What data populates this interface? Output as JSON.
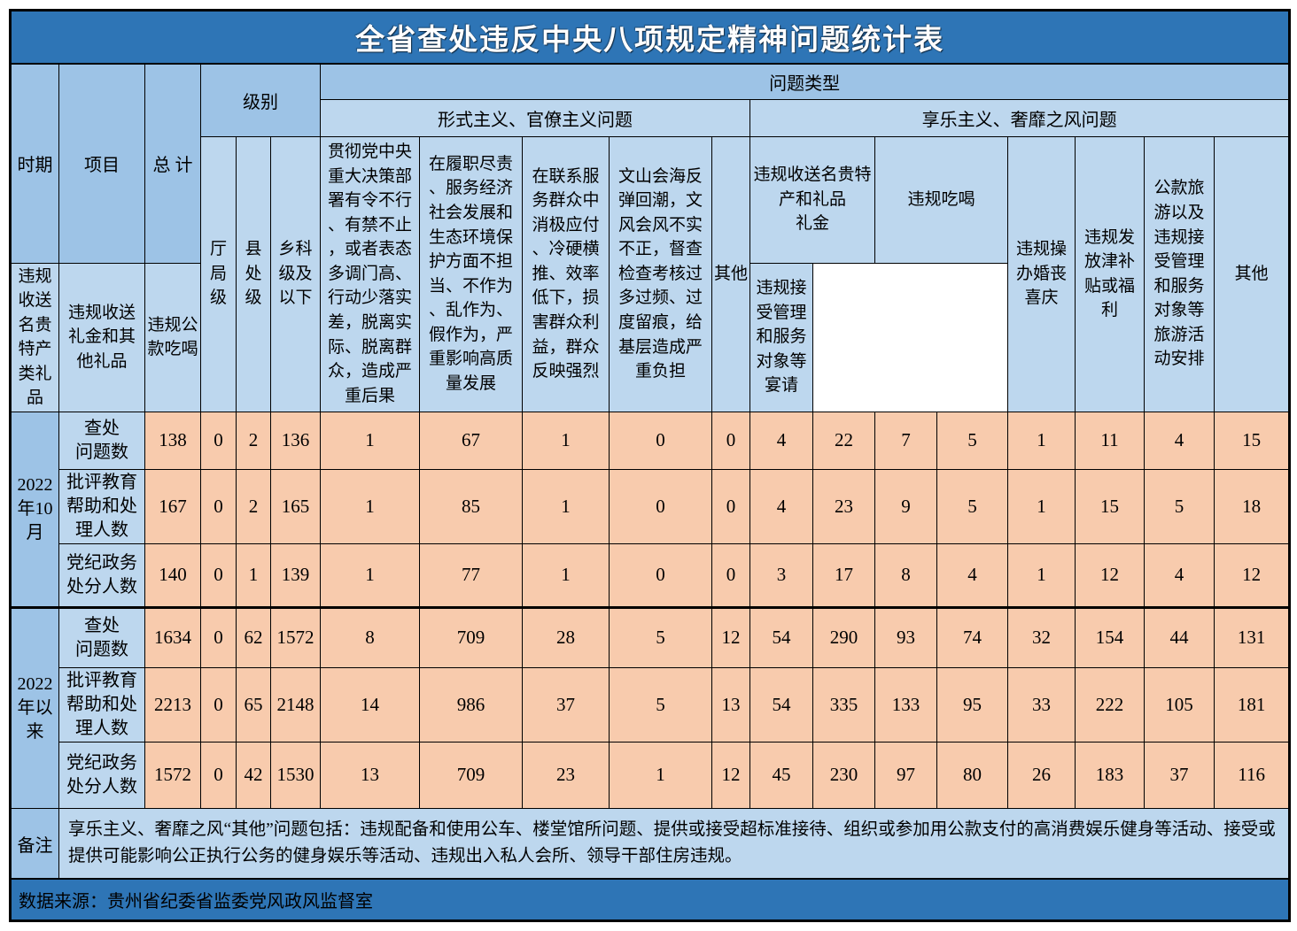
{
  "title": "全省查处违反中央八项规定精神问题统计表",
  "colors": {
    "title_bar": "#2E75B6",
    "header_medium_blue": "#9DC3E6",
    "header_light_blue": "#BDD7EE",
    "data_cell_peach": "#F8CBAD",
    "source_bar": "#2E75B6",
    "border": "#000000"
  },
  "header": {
    "period_col": "时期",
    "item_col": "项目",
    "total_col": "总 计",
    "level_group": "级别",
    "problem_type_group": "问题类型",
    "formalism_group": "形式主义、官僚主义问题",
    "hedonism_group": "享乐主义、奢靡之风问题",
    "level_cols": [
      "厅\n局\n级",
      "县\n处\n级",
      "乡科\n级及\n以下"
    ],
    "formalism_cols": [
      "贯彻党中央重大决策部署有令不行、有禁不止，或者表态多调门高、行动少落实差，脱离实际、脱离群众，造成严重后果",
      "在履职尽责、服务经济社会发展和生态环境保护方面不担当、不作为、乱作为、假作为，严重影响高质量发展",
      "在联系服务群众中消极应付、冷硬横推、效率低下，损害群众利益，群众反映强烈",
      "文山会海反弹回潮，文风会风不实不正，督查检查考核过多过频、过度留痕，给基层造成严重负担",
      "其他"
    ],
    "gift_group": "违规收送名贵特产和礼品\n礼金",
    "gift_cols": [
      "违规收送名贵特产类礼品",
      "违规收送礼金和其他礼品"
    ],
    "dining_group": "违规吃喝",
    "dining_cols": [
      "违规公款吃喝",
      "违规接受管理和服务对象等宴请"
    ],
    "hedonism_cols": [
      "违规操办婚丧喜庆",
      "违规发放津补贴或福利",
      "公款旅游以及违规接受管理和服务对象等旅游活动安排",
      "其他"
    ]
  },
  "body": {
    "periods": [
      {
        "label": "2022\n年10\n月",
        "rows": [
          {
            "label": "查处\n问题数",
            "values": [
              138,
              0,
              2,
              136,
              1,
              67,
              1,
              0,
              0,
              4,
              22,
              7,
              5,
              1,
              11,
              4,
              15
            ]
          },
          {
            "label": "批评教育\n帮助和处\n理人数",
            "values": [
              167,
              0,
              2,
              165,
              1,
              85,
              1,
              0,
              0,
              4,
              23,
              9,
              5,
              1,
              15,
              5,
              18
            ]
          },
          {
            "label": "党纪政务\n处分人数",
            "values": [
              140,
              0,
              1,
              139,
              1,
              77,
              1,
              0,
              0,
              3,
              17,
              8,
              4,
              1,
              12,
              4,
              12
            ]
          }
        ]
      },
      {
        "label": "2022\n年以\n来",
        "rows": [
          {
            "label": "查处\n问题数",
            "values": [
              1634,
              0,
              62,
              1572,
              8,
              709,
              28,
              5,
              12,
              54,
              290,
              93,
              74,
              32,
              154,
              44,
              131
            ]
          },
          {
            "label": "批评教育\n帮助和处\n理人数",
            "values": [
              2213,
              0,
              65,
              2148,
              14,
              986,
              37,
              5,
              13,
              54,
              335,
              133,
              95,
              33,
              222,
              105,
              181
            ]
          },
          {
            "label": "党纪政务\n处分人数",
            "values": [
              1572,
              0,
              42,
              1530,
              13,
              709,
              23,
              1,
              12,
              45,
              230,
              97,
              80,
              26,
              183,
              37,
              116
            ]
          }
        ]
      }
    ]
  },
  "footer": {
    "note_label": "备注",
    "note_text": "享乐主义、奢靡之风“其他”问题包括：违规配备和使用公车、楼堂馆所问题、提供或接受超标准接待、组织或参加用公款支付的高消费娱乐健身等活动、接受或提供可能影响公正执行公务的健身娱乐等活动、违规出入私人会所、领导干部住房违规。",
    "source": "数据来源：贵州省纪委省监委党风政风监督室"
  }
}
